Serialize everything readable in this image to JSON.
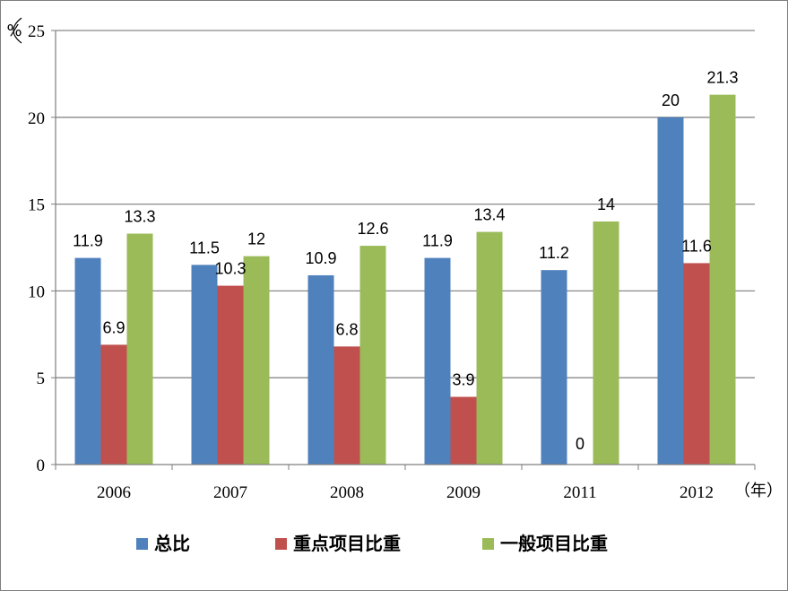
{
  "chart_data": {
    "type": "bar",
    "title": "",
    "ylabel": "%",
    "xlabel": "（年）",
    "ylim": [
      0,
      25
    ],
    "yticks": [
      0,
      5,
      10,
      15,
      20,
      25
    ],
    "grid": true,
    "legend_position": "bottom",
    "categories": [
      "2006",
      "2007",
      "2008",
      "2009",
      "2011",
      "2012"
    ],
    "series": [
      {
        "name": "总比",
        "color": "#4f81bd",
        "values": [
          11.9,
          11.5,
          10.9,
          11.9,
          11.2,
          20
        ]
      },
      {
        "name": "重点项目比重",
        "color": "#c0504d",
        "values": [
          6.9,
          10.3,
          6.8,
          3.9,
          0,
          11.6
        ]
      },
      {
        "name": "一般项目比重",
        "color": "#9bbb59",
        "values": [
          13.3,
          12,
          12.6,
          13.4,
          14,
          21.3
        ]
      }
    ],
    "data_labels": [
      [
        "11.9",
        "11.5",
        "10.9",
        "11.9",
        "11.2",
        "20"
      ],
      [
        "6.9",
        "10.3",
        "6.8",
        "3.9",
        "0",
        "11.6"
      ],
      [
        "13.3",
        "12",
        "12.6",
        "13.4",
        "14",
        "21.3"
      ]
    ]
  }
}
